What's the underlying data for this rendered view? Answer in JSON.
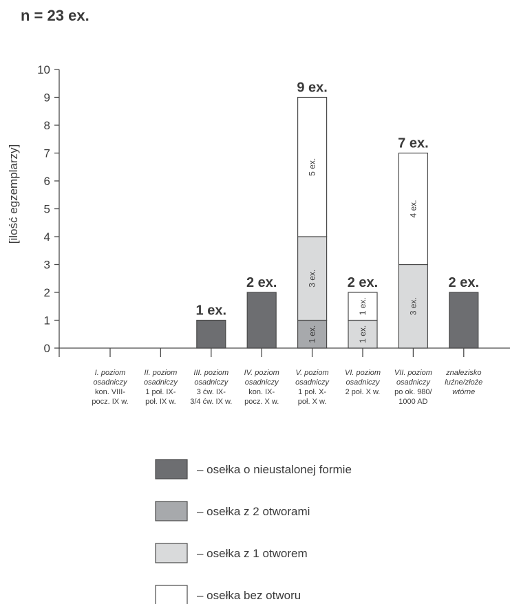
{
  "chart_data": {
    "type": "bar",
    "title": "n = 23 ex.",
    "ylabel": "[ilość egzemplarzy]",
    "ylim": [
      0,
      10
    ],
    "yticks": [
      "0",
      "1",
      "2",
      "3",
      "4",
      "5",
      "6",
      "7",
      "8",
      "9",
      "10"
    ],
    "categories": [
      [
        "I. poziom",
        "osadniczy",
        "kon. VIII-",
        "pocz. IX w."
      ],
      [
        "II. poziom",
        "osadniczy",
        "1 poł. IX-",
        "poł. IX w."
      ],
      [
        "III. poziom",
        "osadniczy",
        "3 ćw. IX-",
        "3/4 ćw. IX w."
      ],
      [
        "IV. poziom",
        "osadniczy",
        "kon. IX-",
        "pocz. X w."
      ],
      [
        "V. poziom",
        "osadniczy",
        "1 poł. X-",
        "poł. X w."
      ],
      [
        "VI. poziom",
        "osadniczy",
        "2 poł. X w."
      ],
      [
        "VII. poziom",
        "osadniczy",
        "po ok. 980/",
        "1000 AD"
      ],
      [
        "znalezisko",
        "luźne/złoże",
        "wtórne"
      ]
    ],
    "series": [
      {
        "name": "– osełka o nieustalonej formie",
        "color": "#6d6e71",
        "values": [
          0,
          0,
          1,
          2,
          0,
          0,
          0,
          2
        ]
      },
      {
        "name": "– osełka z 2 otworami",
        "color": "#a7a9ac",
        "values": [
          0,
          0,
          0,
          0,
          1,
          0,
          0,
          0
        ]
      },
      {
        "name": "– osełka z 1 otworem",
        "color": "#d9dadb",
        "values": [
          0,
          0,
          0,
          0,
          3,
          1,
          3,
          0
        ]
      },
      {
        "name": "– osełka bez otworu",
        "color": "#ffffff",
        "values": [
          0,
          0,
          0,
          0,
          5,
          1,
          4,
          0
        ]
      }
    ],
    "totals": [
      "",
      "",
      "1 ex.",
      "2 ex.",
      "9 ex.",
      "2 ex.",
      "7 ex.",
      "2 ex."
    ],
    "segment_labels": [
      [
        "",
        "",
        "",
        ""
      ],
      [
        "",
        "",
        "",
        ""
      ],
      [
        "",
        "",
        "",
        ""
      ],
      [
        "",
        "",
        "",
        ""
      ],
      [
        "",
        "1 ex.",
        "3 ex.",
        "5 ex."
      ],
      [
        "",
        "",
        "1 ex.",
        "1 ex."
      ],
      [
        "",
        "",
        "3 ex.",
        "4 ex."
      ],
      [
        "",
        "",
        "",
        ""
      ]
    ],
    "grid": false,
    "legend_position": "bottom"
  }
}
